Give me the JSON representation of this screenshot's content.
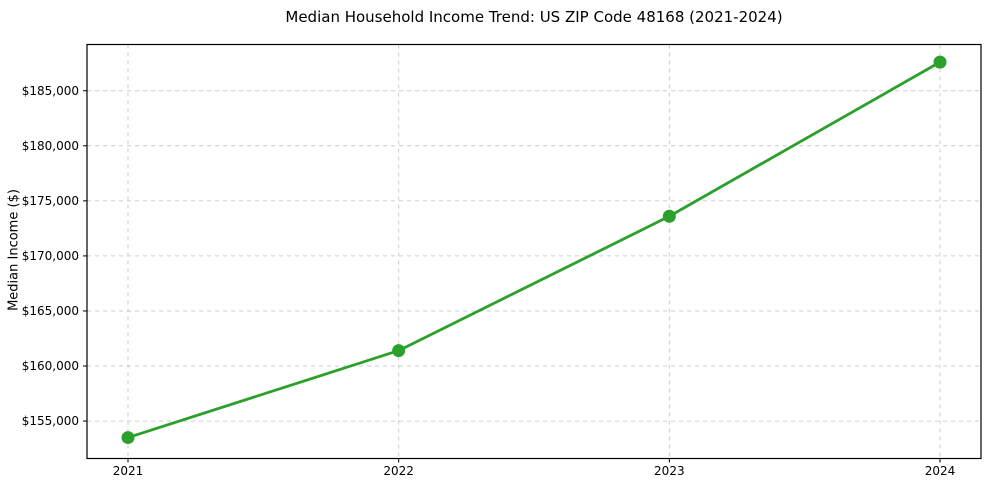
{
  "chart_data": {
    "type": "line",
    "title": "Median Household Income Trend: US ZIP Code 48168 (2021-2024)",
    "xlabel": "",
    "ylabel": "Median Income ($)",
    "categories": [
      "2021",
      "2022",
      "2023",
      "2024"
    ],
    "values": [
      153500,
      161400,
      173600,
      187600
    ],
    "ylim": [
      151600,
      189200
    ],
    "y_ticks": {
      "values": [
        155000,
        160000,
        165000,
        170000,
        175000,
        180000,
        185000
      ],
      "labels": [
        "$155,000",
        "$160,000",
        "$165,000",
        "$170,000",
        "$175,000",
        "$180,000",
        "$185,000"
      ]
    },
    "grid": true,
    "grid_style": "dashed",
    "legend": "none",
    "marker": "circle",
    "colors": {
      "line": "#2ca02c",
      "marker": "#2ca02c",
      "grid": "#cccccc",
      "spine": "#000000",
      "text": "#000000",
      "background": "#ffffff"
    }
  }
}
